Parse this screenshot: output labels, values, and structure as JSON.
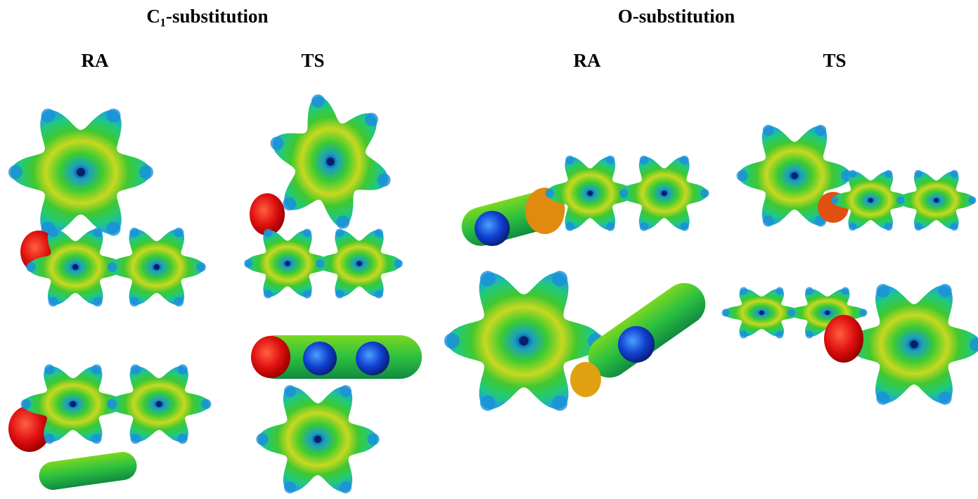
{
  "header": {
    "left": "C₁-substitution",
    "right": "O-substitution"
  },
  "panels": [
    {
      "label": "RA"
    },
    {
      "label": "TS"
    },
    {
      "label": "RA"
    },
    {
      "label": "TS"
    }
  ]
}
